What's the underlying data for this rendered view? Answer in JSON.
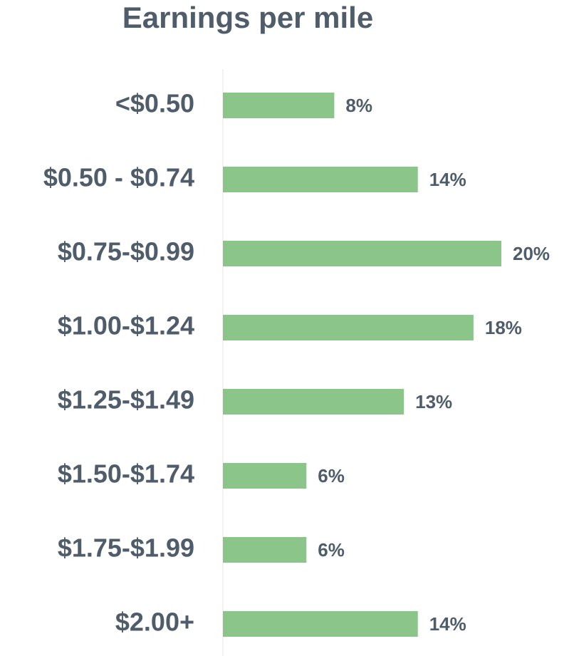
{
  "chart_data": {
    "type": "bar",
    "orientation": "horizontal",
    "title": "Earnings per mile",
    "categories": [
      "<$0.50",
      "$0.50 - $0.74",
      "$0.75-$0.99",
      "$1.00-$1.24",
      "$1.25-$1.49",
      "$1.50-$1.74",
      "$1.75-$1.99",
      "$2.00+"
    ],
    "values": [
      8,
      14,
      20,
      18,
      13,
      6,
      6,
      14
    ],
    "value_labels": [
      "8%",
      "14%",
      "20%",
      "18%",
      "13%",
      "6%",
      "6%",
      "14%"
    ],
    "color": "#8bc58a"
  }
}
